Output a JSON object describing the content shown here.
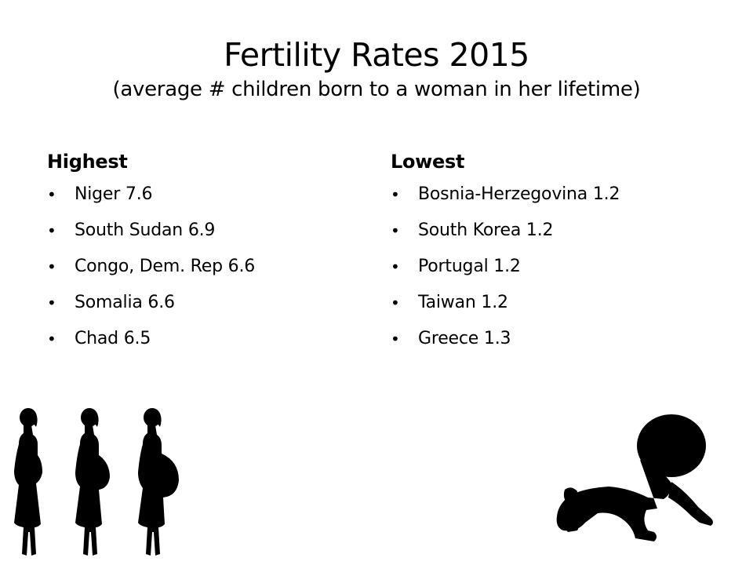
{
  "title": {
    "main": "Fertility Rates 2015",
    "subtitle": "(average # children born to a woman in her lifetime)"
  },
  "highest": {
    "heading": "Highest",
    "items": [
      "Niger 7.6",
      "South Sudan 6.9",
      "Congo, Dem. Rep 6.6",
      "Somalia 6.6",
      "Chad 6.5"
    ]
  },
  "lowest": {
    "heading": "Lowest",
    "items": [
      "Bosnia-Herzegovina 1.2",
      "South Korea 1.2",
      "Portugal 1.2",
      "Taiwan 1.2",
      "Greece 1.3"
    ]
  },
  "illustrations": {
    "pregnant_women": [
      "pregnant-woman-silhouette-icon",
      "pregnant-woman-silhouette-icon",
      "pregnant-woman-silhouette-icon"
    ],
    "baby": "crawling-baby-silhouette-icon",
    "color": "#000000"
  }
}
